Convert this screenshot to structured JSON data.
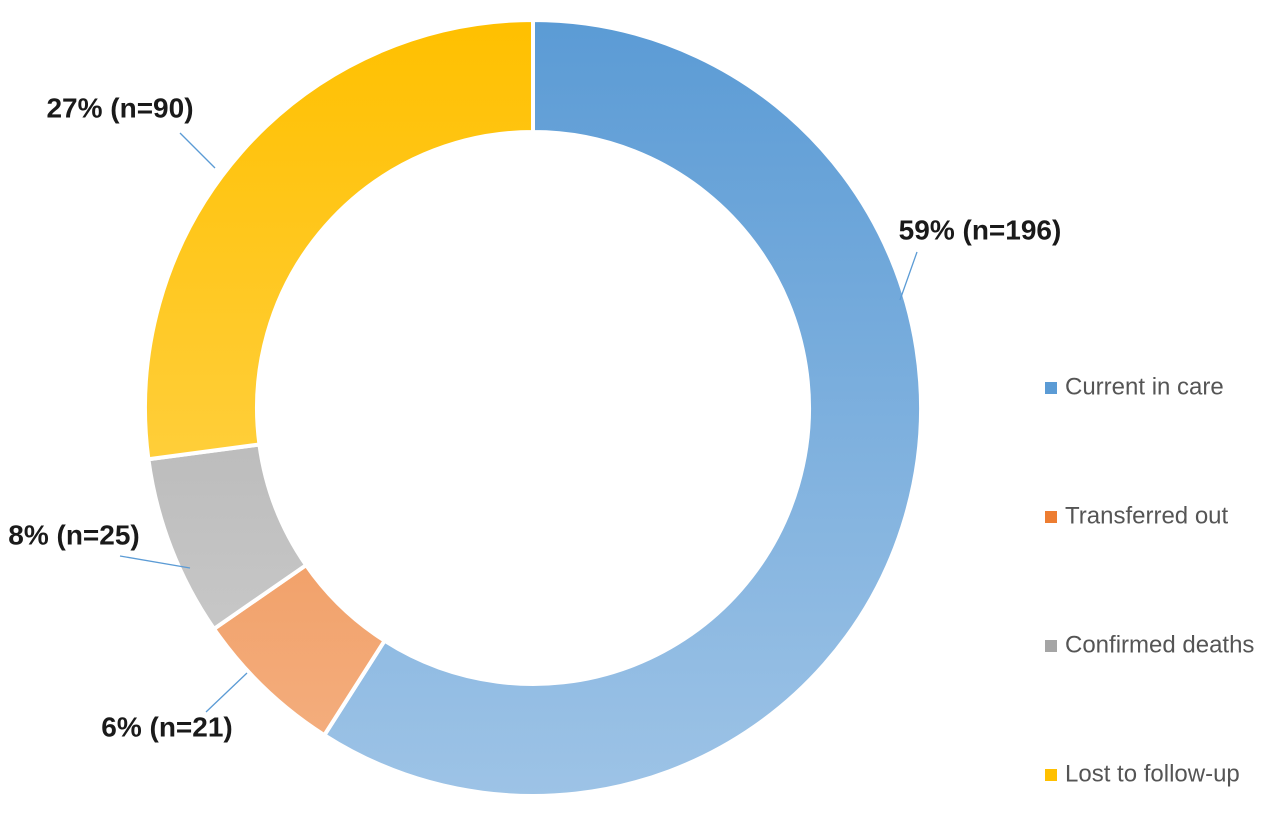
{
  "chart_data": {
    "type": "pie",
    "variant": "donut",
    "title": "",
    "legend_position": "right",
    "series": [
      {
        "name": "Current in care",
        "value": 196,
        "percent": 59,
        "label": "59% (n=196)",
        "color_top": "#5b9bd5",
        "color_bottom": "#9dc3e6"
      },
      {
        "name": "Transferred out",
        "value": 21,
        "percent": 6,
        "label": "6% (n=21)",
        "color_top": "#ed7d31",
        "color_bottom": "#f4b183"
      },
      {
        "name": "Confirmed deaths",
        "value": 25,
        "percent": 8,
        "label": "8% (n=25)",
        "color_top": "#a5a5a5",
        "color_bottom": "#d0d0d0"
      },
      {
        "name": "Lost to follow-up",
        "value": 90,
        "percent": 27,
        "label": "27% (n=90)",
        "color_top": "#ffc000",
        "color_bottom": "#ffd966"
      }
    ],
    "leader_line_color": "#5b9bd5"
  }
}
